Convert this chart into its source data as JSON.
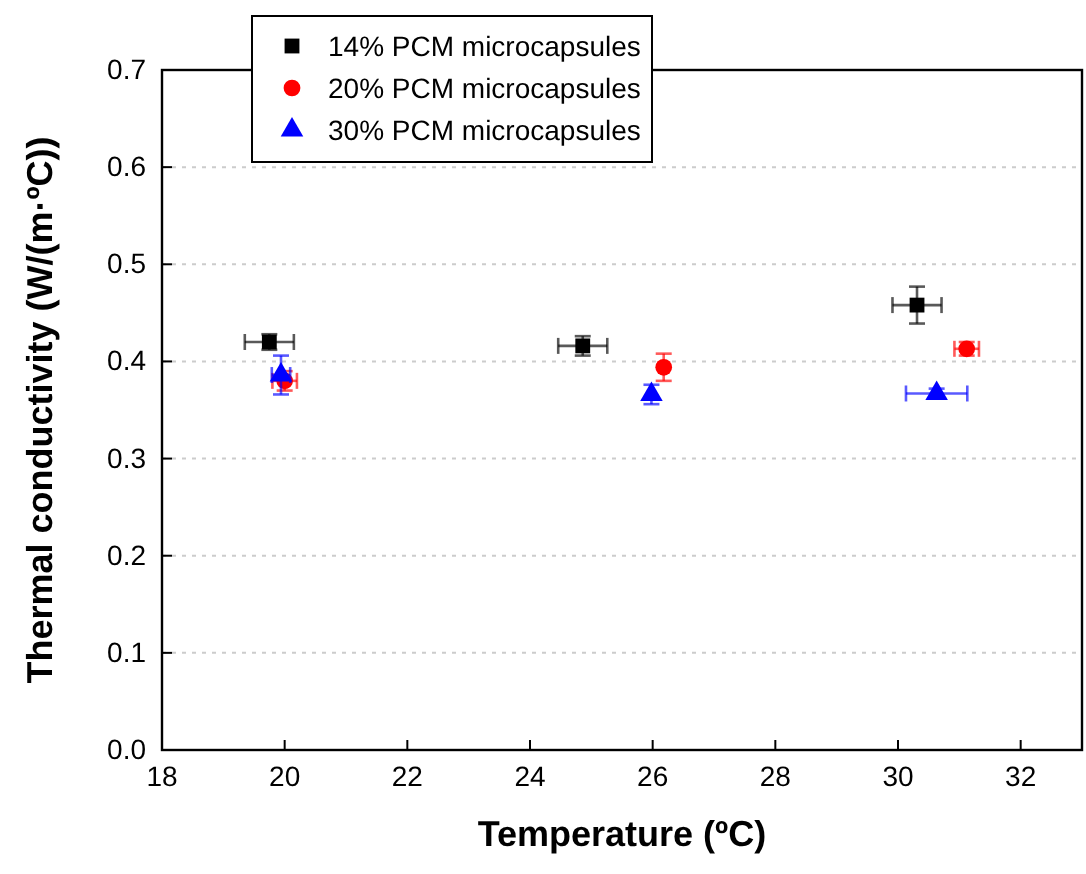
{
  "chart_data": {
    "type": "scatter",
    "xlabel": "Temperature (ºC)",
    "ylabel": "Thermal conductivity (W/(m·ºC))",
    "xlim": [
      18,
      33
    ],
    "xticks": [
      18,
      20,
      22,
      24,
      26,
      28,
      30,
      32
    ],
    "ylim": [
      0,
      0.7
    ],
    "yticks": [
      {
        "value": 0,
        "label": "0.0"
      },
      {
        "value": 0.1,
        "label": "0.1"
      },
      {
        "value": 0.2,
        "label": "0.2"
      },
      {
        "value": 0.3,
        "label": "0.3"
      },
      {
        "value": 0.4,
        "label": "0.4"
      },
      {
        "value": 0.5,
        "label": "0.5"
      },
      {
        "value": 0.6,
        "label": "0.6"
      },
      {
        "value": 0.7,
        "label": "0.7"
      }
    ],
    "grid": "y",
    "legend": "top left",
    "series": [
      {
        "name": "14% PCM microcapsules",
        "color": "#000000",
        "marker": "square",
        "x": [
          19.75,
          24.86,
          30.31
        ],
        "values": [
          0.42,
          0.416,
          0.458
        ],
        "errors": [
          0.008,
          0.01,
          0.019
        ],
        "xerrors": [
          0.4,
          0.4,
          0.4
        ]
      },
      {
        "name": "20% PCM microcapsules",
        "color": "#ff0000",
        "marker": "circle",
        "x": [
          20.0,
          26.18,
          31.12
        ],
        "values": [
          0.38,
          0.394,
          0.413
        ],
        "errors": [
          0.01,
          0.014,
          0.007
        ],
        "xerrors": [
          0.2,
          null,
          0.2
        ]
      },
      {
        "name": "30% PCM microcapsules",
        "color": "#0000ff",
        "marker": "triangle",
        "x": [
          19.94,
          25.98,
          30.63
        ],
        "values": [
          0.386,
          0.366,
          0.367
        ],
        "errors": [
          0.02,
          0.01,
          0.005
        ],
        "xerrors": [
          0.15,
          null,
          0.5
        ]
      }
    ]
  }
}
